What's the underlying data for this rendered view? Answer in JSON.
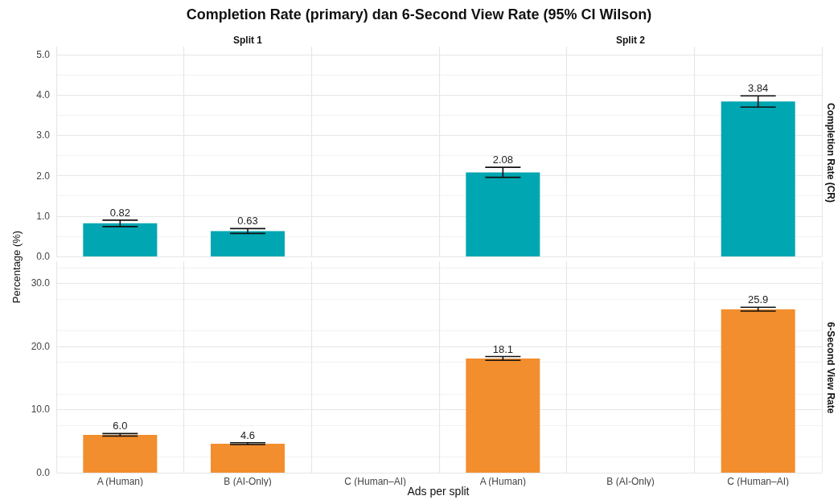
{
  "chart_data": [
    {
      "type": "bar",
      "title": "Completion Rate (primary) dan 6-Second View Rate (95% CI Wilson)",
      "annotations": [
        "Split 1",
        "Split 2"
      ],
      "ylabel": "Percentage (%)",
      "y2label": "Completion Rate (CR)",
      "categories": [
        null,
        null,
        null,
        null,
        null,
        null
      ],
      "series": [
        {
          "color": "#00a6b2",
          "values": [
            0.82,
            0.63,
            null,
            2.08,
            null,
            3.84
          ],
          "errors": [
            [
              0.74,
              0.9
            ],
            [
              0.57,
              0.69
            ],
            null,
            [
              1.96,
              2.21
            ],
            null,
            [
              3.7,
              3.98
            ]
          ],
          "value_labels": [
            "0.82",
            "0.63",
            null,
            "2.08",
            null,
            "3.84"
          ]
        }
      ],
      "ylim": [
        0,
        5.2
      ],
      "yticks": [
        {
          "value": 0,
          "label": "0.0"
        },
        {
          "value": 1,
          "label": "1.0"
        },
        {
          "value": 2,
          "label": "2.0"
        },
        {
          "value": 3,
          "label": "3.0"
        },
        {
          "value": 4,
          "label": "4.0"
        },
        {
          "value": 5,
          "label": "5.0"
        }
      ],
      "grid": true,
      "tick_labels": "y"
    },
    {
      "type": "bar",
      "xlabel": "Ads per split",
      "y2label": "6-Second View Rate",
      "categories": [
        "A (Human)",
        "B (AI-Only)",
        "C (Human–AI)",
        "A (Human)",
        "B (AI-Only)",
        "C (Human–AI)"
      ],
      "series": [
        {
          "color": "#f28e2e",
          "values": [
            6.0,
            4.6,
            null,
            18.1,
            null,
            25.9
          ],
          "errors": [
            [
              5.8,
              6.2
            ],
            [
              4.45,
              4.75
            ],
            null,
            [
              17.8,
              18.4
            ],
            null,
            [
              25.6,
              26.2
            ]
          ],
          "value_labels": [
            "6.0",
            "4.6",
            null,
            "18.1",
            null,
            "25.9"
          ]
        }
      ],
      "ylim": [
        0,
        33.5
      ],
      "yticks": [
        {
          "value": 0,
          "label": "0.0"
        },
        {
          "value": 10,
          "label": "10.0"
        },
        {
          "value": 20,
          "label": "20.0"
        },
        {
          "value": 30,
          "label": "30.0"
        }
      ],
      "grid": true
    }
  ]
}
